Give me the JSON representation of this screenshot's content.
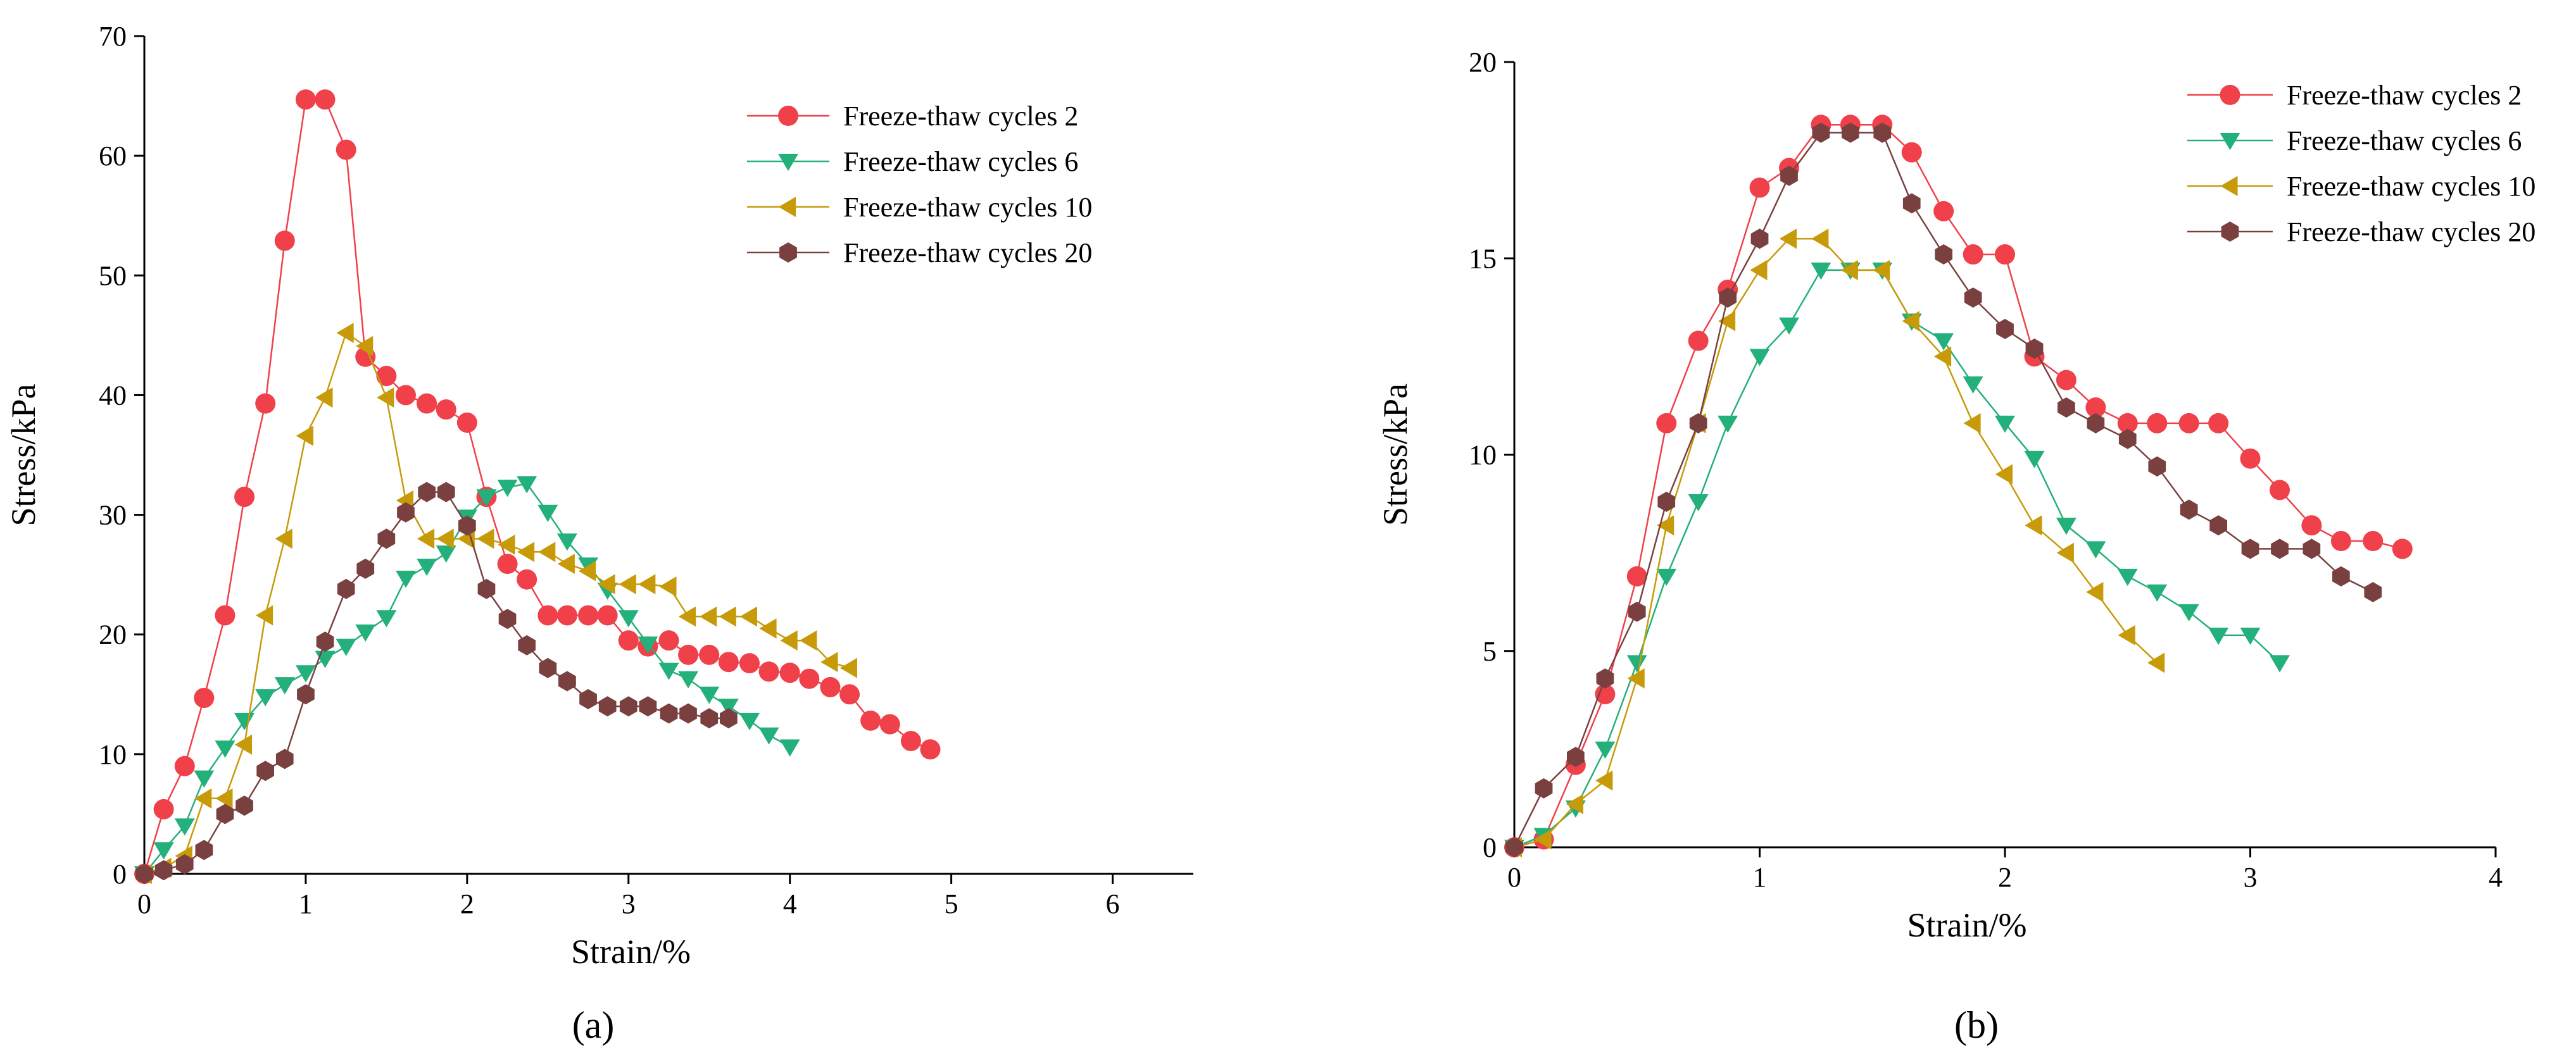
{
  "colors": {
    "Freeze-thaw cycles 2": "#f0404a",
    "Freeze-thaw cycles 6": "#23b07a",
    "Freeze-thaw cycles 10": "#c79a09",
    "Freeze-thaw cycles 20": "#7a4040"
  },
  "chart_data": [
    {
      "type": "line",
      "panel_label": "(a)",
      "xlabel": "Strain/%",
      "ylabel": "Stress/kPa",
      "xlim": [
        0,
        6.5
      ],
      "ylim": [
        0,
        70
      ],
      "xticks": [
        0,
        1,
        2,
        3,
        4,
        5,
        6
      ],
      "yticks": [
        0,
        10,
        20,
        30,
        40,
        50,
        60,
        70
      ],
      "grid": false,
      "legend_position": "top-right",
      "series": [
        {
          "name": "Freeze-thaw cycles 2",
          "marker": "circle",
          "x": [
            0,
            0.12,
            0.25,
            0.37,
            0.5,
            0.62,
            0.75,
            0.87,
            1.0,
            1.12,
            1.25,
            1.37,
            1.5,
            1.62,
            1.75,
            1.87,
            2.0,
            2.12,
            2.25,
            2.37,
            2.5,
            2.62,
            2.75,
            2.87,
            3.0,
            3.12,
            3.25,
            3.37,
            3.5,
            3.62,
            3.75,
            3.87,
            4.0,
            4.12,
            4.25,
            4.37,
            4.5,
            4.62,
            4.75,
            4.87
          ],
          "y": [
            0,
            5.4,
            9.0,
            14.7,
            21.6,
            31.5,
            39.3,
            52.9,
            64.7,
            64.7,
            60.5,
            43.2,
            41.6,
            40.0,
            39.3,
            38.8,
            37.7,
            31.5,
            25.9,
            24.6,
            21.6,
            21.6,
            21.6,
            21.6,
            19.5,
            19.0,
            19.5,
            18.3,
            18.3,
            17.7,
            17.6,
            16.9,
            16.8,
            16.3,
            15.6,
            15.0,
            12.8,
            12.5,
            11.1,
            10.4
          ]
        },
        {
          "name": "Freeze-thaw cycles 6",
          "marker": "triangle-down",
          "x": [
            0,
            0.12,
            0.25,
            0.37,
            0.5,
            0.62,
            0.75,
            0.87,
            1.0,
            1.12,
            1.25,
            1.37,
            1.5,
            1.62,
            1.75,
            1.87,
            2.0,
            2.12,
            2.25,
            2.37,
            2.5,
            2.62,
            2.75,
            2.87,
            3.0,
            3.12,
            3.25,
            3.37,
            3.5,
            3.62,
            3.75,
            3.87,
            4.0
          ],
          "y": [
            0,
            2.0,
            4.0,
            8.0,
            10.5,
            12.8,
            14.8,
            15.8,
            16.8,
            18.0,
            19.0,
            20.2,
            21.4,
            24.7,
            25.7,
            26.8,
            29.8,
            31.5,
            32.3,
            32.6,
            30.2,
            27.8,
            25.8,
            23.7,
            21.4,
            19.2,
            17.0,
            16.3,
            15.0,
            14.0,
            12.8,
            11.6,
            10.6
          ]
        },
        {
          "name": "Freeze-thaw cycles 10",
          "marker": "triangle-left",
          "x": [
            0,
            0.12,
            0.25,
            0.37,
            0.5,
            0.62,
            0.75,
            0.87,
            1.0,
            1.12,
            1.25,
            1.37,
            1.5,
            1.62,
            1.75,
            1.87,
            2.0,
            2.12,
            2.25,
            2.37,
            2.5,
            2.62,
            2.75,
            2.87,
            3.0,
            3.12,
            3.25,
            3.37,
            3.5,
            3.62,
            3.75,
            3.87,
            4.0,
            4.12,
            4.25,
            4.37
          ],
          "y": [
            0,
            0.5,
            1.5,
            6.3,
            6.3,
            10.8,
            21.6,
            28.0,
            36.6,
            39.8,
            45.2,
            44.1,
            39.8,
            31.2,
            28.0,
            28.0,
            28.0,
            28.0,
            27.5,
            26.9,
            26.9,
            25.9,
            25.3,
            24.2,
            24.2,
            24.2,
            24.0,
            21.5,
            21.5,
            21.5,
            21.5,
            20.5,
            19.5,
            19.5,
            17.7,
            17.2
          ]
        },
        {
          "name": "Freeze-thaw cycles 20",
          "marker": "hexagon",
          "x": [
            0,
            0.12,
            0.25,
            0.37,
            0.5,
            0.62,
            0.75,
            0.87,
            1.0,
            1.12,
            1.25,
            1.37,
            1.5,
            1.62,
            1.75,
            1.87,
            2.0,
            2.12,
            2.25,
            2.37,
            2.5,
            2.62,
            2.75,
            2.87,
            3.0,
            3.12,
            3.25,
            3.37,
            3.5,
            3.62
          ],
          "y": [
            0,
            0.3,
            0.8,
            2.0,
            5.0,
            5.7,
            8.6,
            9.6,
            15.0,
            19.4,
            23.8,
            25.5,
            28.0,
            30.2,
            31.9,
            31.9,
            29.1,
            23.8,
            21.3,
            19.1,
            17.2,
            16.1,
            14.6,
            14.0,
            14.0,
            14.0,
            13.4,
            13.4,
            13.0,
            13.0
          ]
        }
      ]
    },
    {
      "type": "line",
      "panel_label": "(b)",
      "xlabel": "Strain/%",
      "ylabel": "Stress/kPa",
      "xlim": [
        0,
        4
      ],
      "ylim": [
        0,
        20
      ],
      "xticks": [
        0,
        1,
        2,
        3,
        4
      ],
      "yticks": [
        0,
        5,
        10,
        15,
        20
      ],
      "grid": false,
      "legend_position": "top-right",
      "series": [
        {
          "name": "Freeze-thaw cycles 2",
          "marker": "circle",
          "x": [
            0,
            0.12,
            0.25,
            0.37,
            0.5,
            0.62,
            0.75,
            0.87,
            1.0,
            1.12,
            1.25,
            1.37,
            1.5,
            1.62,
            1.75,
            1.87,
            2.0,
            2.12,
            2.25,
            2.37,
            2.5,
            2.62,
            2.75,
            2.87,
            3.0,
            3.12,
            3.25,
            3.37,
            3.5,
            3.62
          ],
          "y": [
            0,
            0.2,
            2.1,
            3.9,
            6.9,
            10.8,
            12.9,
            14.2,
            16.8,
            17.3,
            18.4,
            18.4,
            18.4,
            17.7,
            16.2,
            15.1,
            15.1,
            12.5,
            11.9,
            11.2,
            10.8,
            10.8,
            10.8,
            10.8,
            9.9,
            9.1,
            8.2,
            7.8,
            7.8,
            7.6
          ]
        },
        {
          "name": "Freeze-thaw cycles 6",
          "marker": "triangle-down",
          "x": [
            0,
            0.12,
            0.25,
            0.37,
            0.5,
            0.62,
            0.75,
            0.87,
            1.0,
            1.12,
            1.25,
            1.37,
            1.5,
            1.62,
            1.75,
            1.87,
            2.0,
            2.12,
            2.25,
            2.37,
            2.5,
            2.62,
            2.75,
            2.87,
            3.0,
            3.12
          ],
          "y": [
            0,
            0.3,
            1.0,
            2.5,
            4.7,
            6.9,
            8.8,
            10.8,
            12.5,
            13.3,
            14.7,
            14.7,
            14.7,
            13.4,
            12.9,
            11.8,
            10.8,
            9.9,
            8.2,
            7.6,
            6.9,
            6.5,
            6.0,
            5.4,
            5.4,
            4.7
          ]
        },
        {
          "name": "Freeze-thaw cycles 10",
          "marker": "triangle-left",
          "x": [
            0,
            0.12,
            0.25,
            0.37,
            0.5,
            0.62,
            0.75,
            0.87,
            1.0,
            1.12,
            1.25,
            1.37,
            1.5,
            1.62,
            1.75,
            1.87,
            2.0,
            2.12,
            2.25,
            2.37,
            2.5,
            2.62
          ],
          "y": [
            0,
            0.2,
            1.1,
            1.7,
            4.3,
            8.2,
            10.8,
            13.4,
            14.7,
            15.5,
            15.5,
            14.7,
            14.7,
            13.4,
            12.5,
            10.8,
            9.5,
            8.2,
            7.5,
            6.5,
            5.4,
            4.7
          ]
        },
        {
          "name": "Freeze-thaw cycles 20",
          "marker": "hexagon",
          "x": [
            0,
            0.12,
            0.25,
            0.37,
            0.5,
            0.62,
            0.75,
            0.87,
            1.0,
            1.12,
            1.25,
            1.37,
            1.5,
            1.62,
            1.75,
            1.87,
            2.0,
            2.12,
            2.25,
            2.37,
            2.5,
            2.62,
            2.75,
            2.87,
            3.0,
            3.12,
            3.25,
            3.37,
            3.5
          ],
          "y": [
            0,
            1.5,
            2.3,
            4.3,
            6.0,
            8.8,
            10.8,
            14.0,
            15.5,
            17.1,
            18.2,
            18.2,
            18.2,
            16.4,
            15.1,
            14.0,
            13.2,
            12.7,
            11.2,
            10.8,
            10.4,
            9.7,
            8.6,
            8.2,
            7.6,
            7.6,
            7.6,
            6.9,
            6.5
          ]
        }
      ]
    }
  ]
}
